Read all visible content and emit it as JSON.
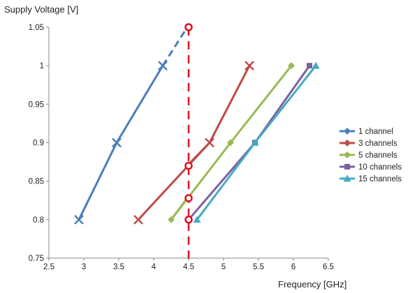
{
  "chart_data": {
    "type": "line",
    "xlabel": "Frequency [GHz]",
    "ylabel": "Supply Voltage [V]",
    "xlim": [
      2.5,
      6.5
    ],
    "ylim": [
      0.75,
      1.05
    ],
    "xticks": [
      "2.5",
      "3",
      "3.5",
      "4",
      "4.5",
      "5",
      "5.5",
      "6",
      "6.5"
    ],
    "yticks": [
      "0.75",
      "0.8",
      "0.85",
      "0.9",
      "0.95",
      "1",
      "1.05"
    ],
    "grid": false,
    "legend_position": "right",
    "series": [
      {
        "name": "1 channel",
        "color": "#4a7ebb",
        "marker": "x",
        "x": [
          2.93,
          3.47,
          4.13
        ],
        "y": [
          0.8,
          0.9,
          1.0
        ]
      },
      {
        "name": "3 channels",
        "color": "#be4b48",
        "marker": "x",
        "x": [
          3.78,
          4.8,
          5.37
        ],
        "y": [
          0.8,
          0.9,
          1.0
        ]
      },
      {
        "name": "5 channels",
        "color": "#98b954",
        "marker": "diamond",
        "x": [
          4.25,
          5.1,
          5.97
        ],
        "y": [
          0.8,
          0.9,
          1.0
        ]
      },
      {
        "name": "10 channels",
        "color": "#7d60a0",
        "marker": "square",
        "x": [
          4.5,
          5.45,
          6.23
        ],
        "y": [
          0.8,
          0.9,
          1.0
        ]
      },
      {
        "name": "15 channels",
        "color": "#46aac5",
        "marker": "triangle",
        "x": [
          4.62,
          5.45,
          6.32
        ],
        "y": [
          0.8,
          0.9,
          1.0
        ]
      }
    ],
    "extensions": [
      {
        "series": "1 channel",
        "style": "dashed",
        "x": [
          4.13,
          4.48
        ],
        "y": [
          1.0,
          1.05
        ]
      },
      {
        "series": "3 channels",
        "style": "solid",
        "x": [
          4.48,
          4.8
        ],
        "y": [
          0.87,
          0.9
        ]
      },
      {
        "series": "5 channels",
        "style": "solid",
        "x": [
          4.48,
          4.25
        ],
        "y": [
          0.828,
          0.8
        ]
      }
    ],
    "reference_line": {
      "x": 4.5,
      "style": "dashed",
      "color": "#dd1122",
      "y_from": 0.745,
      "y_to": 1.05
    },
    "highlight_points": [
      {
        "x": 4.5,
        "y": 1.05
      },
      {
        "x": 4.5,
        "y": 0.87
      },
      {
        "x": 4.5,
        "y": 0.828
      },
      {
        "x": 4.5,
        "y": 0.8
      }
    ]
  }
}
